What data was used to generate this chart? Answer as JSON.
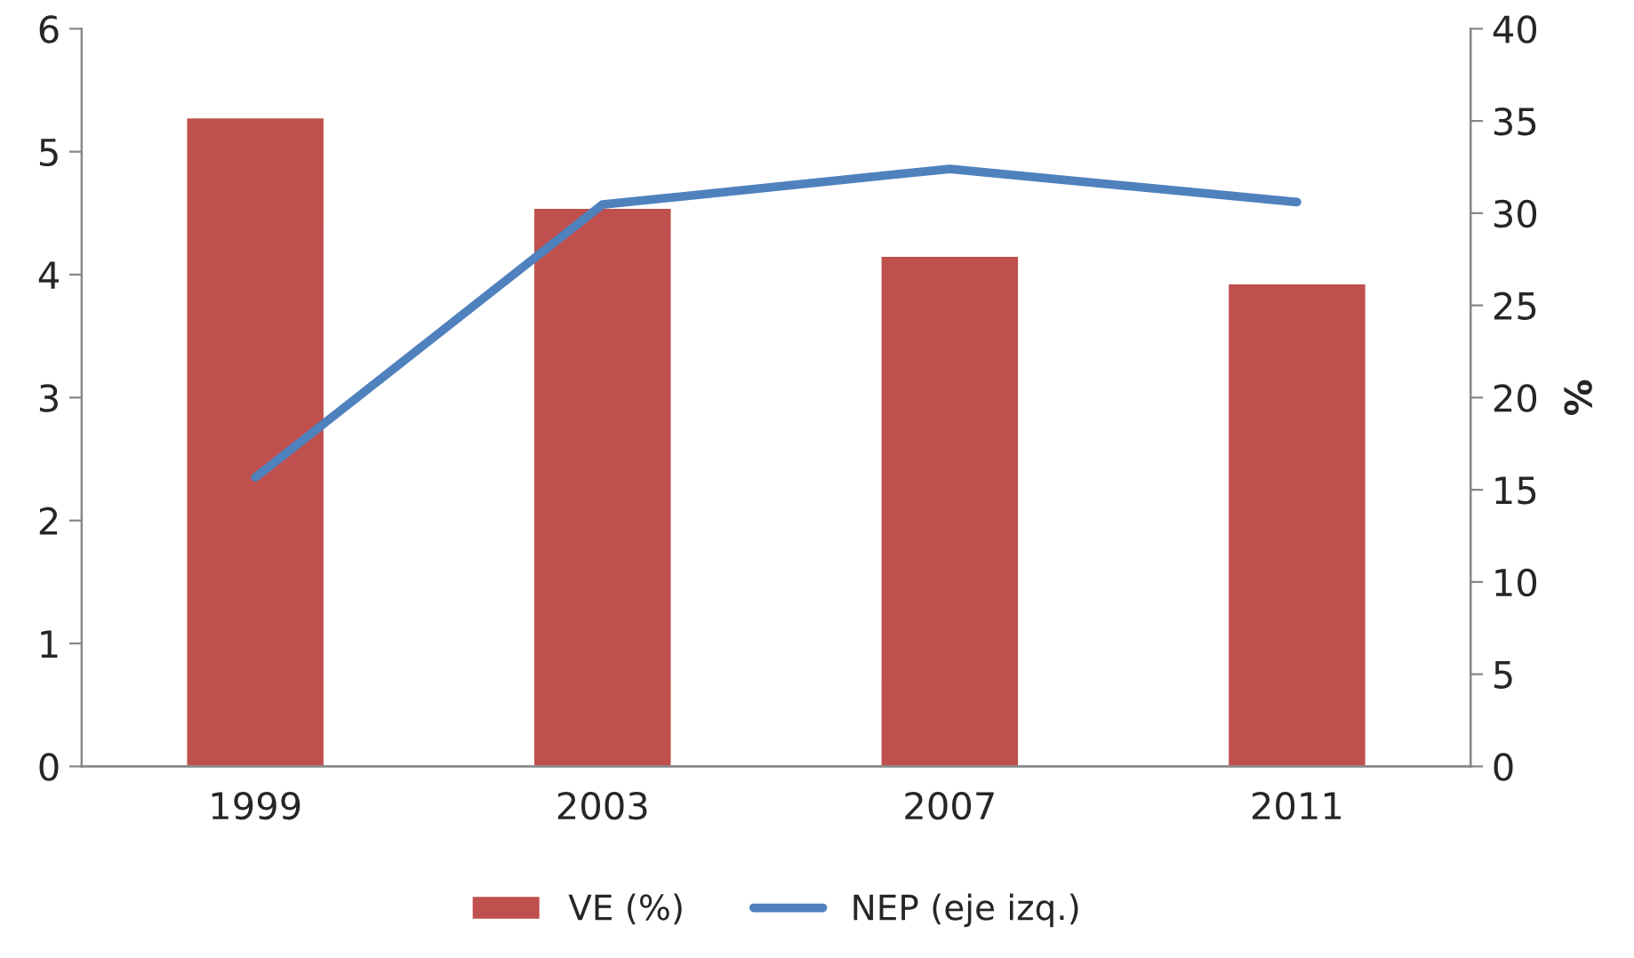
{
  "chart_data": {
    "type": "bar",
    "categories": [
      "1999",
      "2003",
      "2007",
      "2011"
    ],
    "series": [
      {
        "name": "VE (%)",
        "axis": "y2",
        "color": "#c0504d",
        "values": [
          35.2,
          30.3,
          27.7,
          26.2
        ]
      },
      {
        "name": "NEP (eje izq.)",
        "type": "line",
        "axis": "y",
        "color": "#4f81bd",
        "values": [
          2.35,
          4.57,
          4.86,
          4.59
        ]
      }
    ],
    "ylim": [
      0,
      6
    ],
    "yticks": [
      0,
      1,
      2,
      3,
      4,
      5,
      6
    ],
    "y2lim": [
      0,
      40
    ],
    "y2ticks": [
      0,
      5,
      10,
      15,
      20,
      25,
      30,
      35,
      40
    ],
    "y2label": "%",
    "grid": false,
    "legend": "bottom",
    "marker": "none"
  }
}
